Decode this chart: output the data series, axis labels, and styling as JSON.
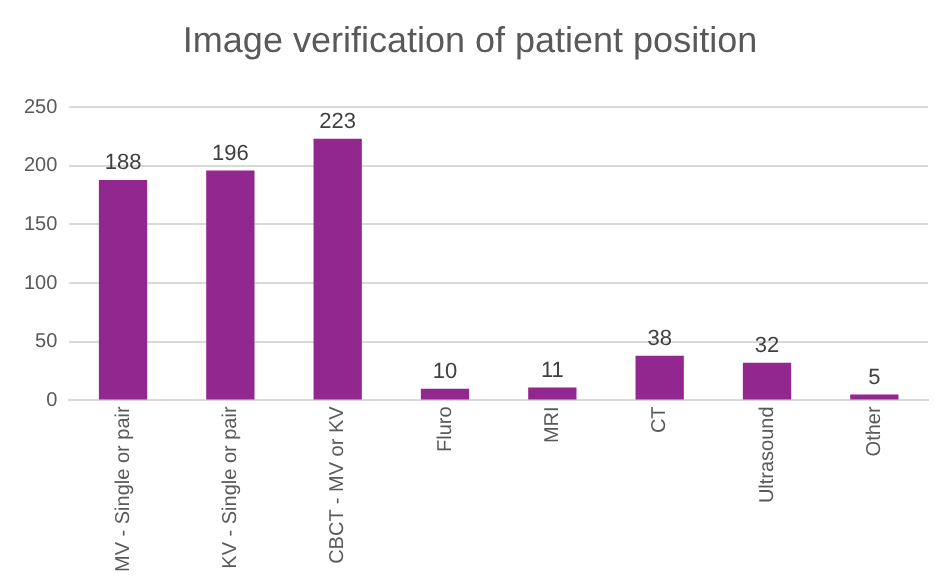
{
  "chart_data": {
    "type": "bar",
    "title": "Image verification of patient position",
    "categories": [
      "MV - Single or pair",
      "KV - Single or pair",
      "CBCT - MV or KV",
      "Fluro",
      "MRI",
      "CT",
      "Ultrasound",
      "Other"
    ],
    "values": [
      188,
      196,
      223,
      10,
      11,
      38,
      32,
      5
    ],
    "color": "#92278f",
    "ylim": [
      0,
      250
    ],
    "yticks": [
      0,
      50,
      100,
      150,
      200,
      250
    ],
    "grid": "y",
    "data_labels": true,
    "legend": false
  }
}
